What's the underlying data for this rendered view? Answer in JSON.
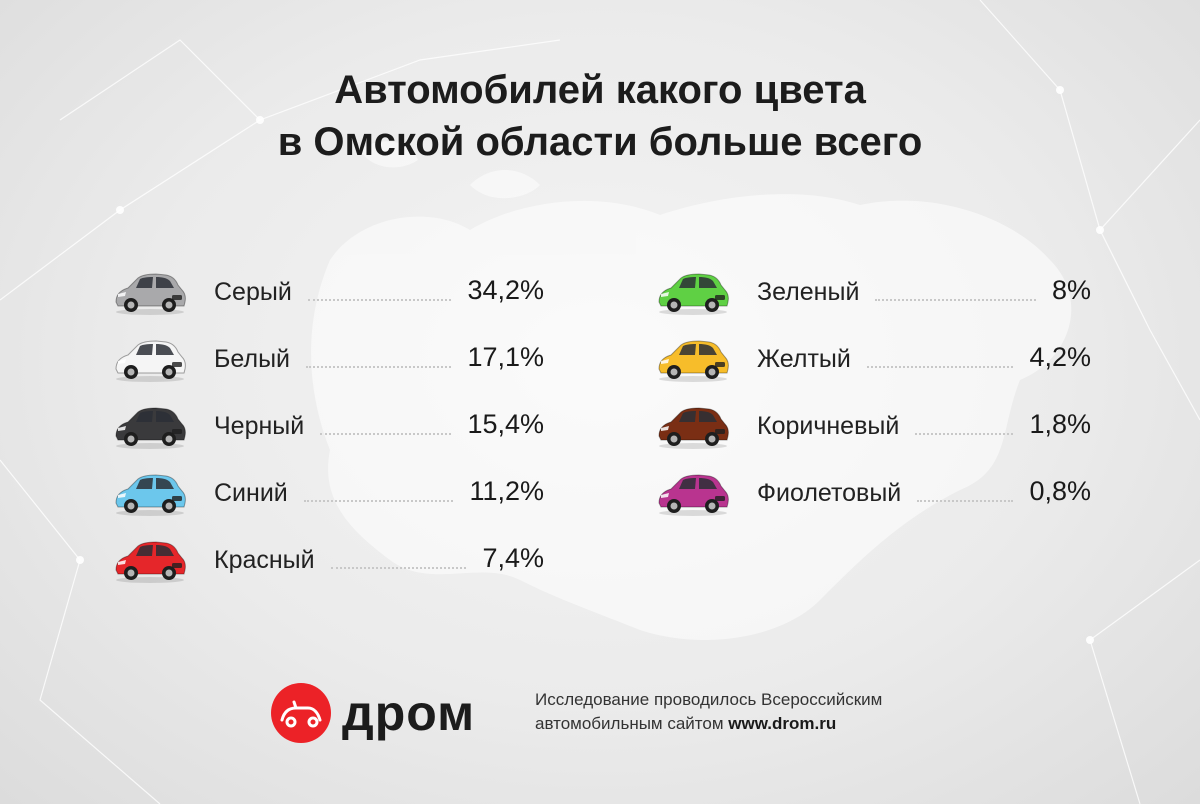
{
  "title": {
    "line1": "Автомобилей какого цвета",
    "line2": "в Омской области больше всего"
  },
  "chart_data": {
    "type": "table",
    "title": "Автомобилей какого цвета в Омской области больше всего",
    "unit": "%",
    "categories": [
      "Серый",
      "Белый",
      "Черный",
      "Синий",
      "Красный",
      "Зеленый",
      "Желтый",
      "Коричневый",
      "Фиолетовый"
    ],
    "values": [
      34.2,
      17.1,
      15.4,
      11.2,
      7.4,
      8,
      4.2,
      1.8,
      0.8
    ],
    "items": [
      {
        "label": "Серый",
        "value_label": "34,2%",
        "color": "#a9a9ab",
        "column": "left"
      },
      {
        "label": "Белый",
        "value_label": "17,1%",
        "color": "#f5f5f5",
        "column": "left"
      },
      {
        "label": "Черный",
        "value_label": "15,4%",
        "color": "#3a3a3c",
        "column": "left"
      },
      {
        "label": "Синий",
        "value_label": "11,2%",
        "color": "#6cc7ec",
        "column": "left"
      },
      {
        "label": "Красный",
        "value_label": "7,4%",
        "color": "#e5262a",
        "column": "left"
      },
      {
        "label": "Зеленый",
        "value_label": "8%",
        "color": "#5fd044",
        "column": "right"
      },
      {
        "label": "Желтый",
        "value_label": "4,2%",
        "color": "#f7bd2a",
        "column": "right"
      },
      {
        "label": "Коричневый",
        "value_label": "1,8%",
        "color": "#7a2e14",
        "column": "right"
      },
      {
        "label": "Фиолетовый",
        "value_label": "0,8%",
        "color": "#b9348f",
        "column": "right"
      }
    ]
  },
  "footer": {
    "brand": "дром",
    "brand_color": "#ec2227",
    "note_line1": "Исследование проводилось Всероссийским",
    "note_line2_prefix": "автомобильным сайтом ",
    "note_line2_site": "www.drom.ru"
  }
}
